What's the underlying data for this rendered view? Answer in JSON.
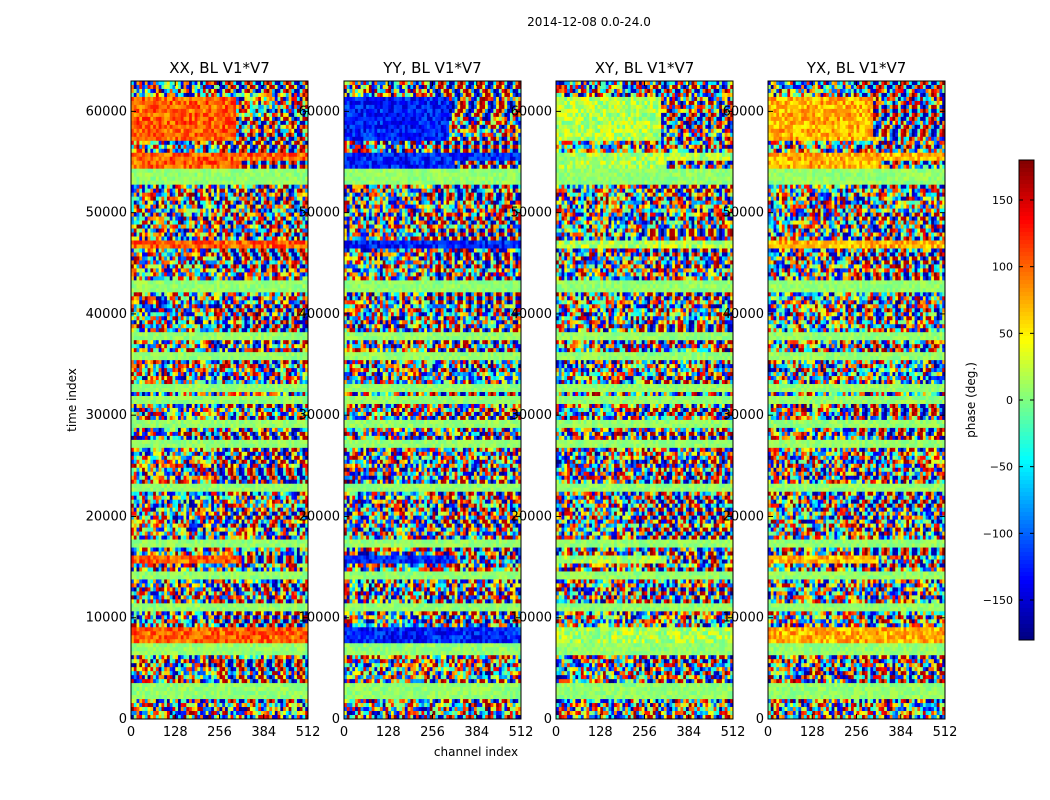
{
  "figure": {
    "suptitle": "2014-12-08 0.0-24.0"
  },
  "chart_data": {
    "type": "heatmap",
    "shared_ylabel": "time index",
    "shared_xlabel": "channel index",
    "xlim": [
      0,
      512
    ],
    "ylim": [
      0,
      63000
    ],
    "xticks": [
      0,
      128,
      256,
      384,
      512
    ],
    "yticks": [
      0,
      10000,
      20000,
      30000,
      40000,
      50000,
      60000
    ],
    "panels": [
      {
        "title": "XX, BL V1*V7",
        "seed": 11,
        "bias": "hot"
      },
      {
        "title": "YY, BL V1*V7",
        "seed": 23,
        "bias": "cold"
      },
      {
        "title": "XY, BL V1*V7",
        "seed": 37,
        "bias": "green"
      },
      {
        "title": "YX, BL V1*V7",
        "seed": 53,
        "bias": "mixed"
      }
    ],
    "bright_bands": [
      {
        "y0": 53500,
        "y1": 56000,
        "x0": 0,
        "x1": 320
      },
      {
        "y0": 55000,
        "y1": 56000,
        "x0": 0,
        "x1": 512
      },
      {
        "y0": 57000,
        "y1": 61500,
        "x0": 0,
        "x1": 300
      },
      {
        "y0": 46500,
        "y1": 47300,
        "x0": 0,
        "x1": 512
      },
      {
        "y0": 15200,
        "y1": 16000,
        "x0": 0,
        "x1": 320
      },
      {
        "y0": 7600,
        "y1": 9200,
        "x0": 0,
        "x1": 512
      }
    ],
    "flat_rows": [
      54000,
      53000,
      43000,
      42500,
      37800,
      36000,
      32800,
      31500,
      29000,
      27200,
      23000,
      17500,
      14000,
      11000,
      7200,
      6800,
      3000,
      2500
    ],
    "colorbar": {
      "label": "phase (deg.)",
      "min": -180,
      "max": 180,
      "ticks": [
        150,
        100,
        50,
        0,
        -50,
        -100,
        -150
      ],
      "tick_labels": [
        "150",
        "100",
        "50",
        "0",
        "−50",
        "−100",
        "−150"
      ],
      "colormap": "jet"
    }
  }
}
